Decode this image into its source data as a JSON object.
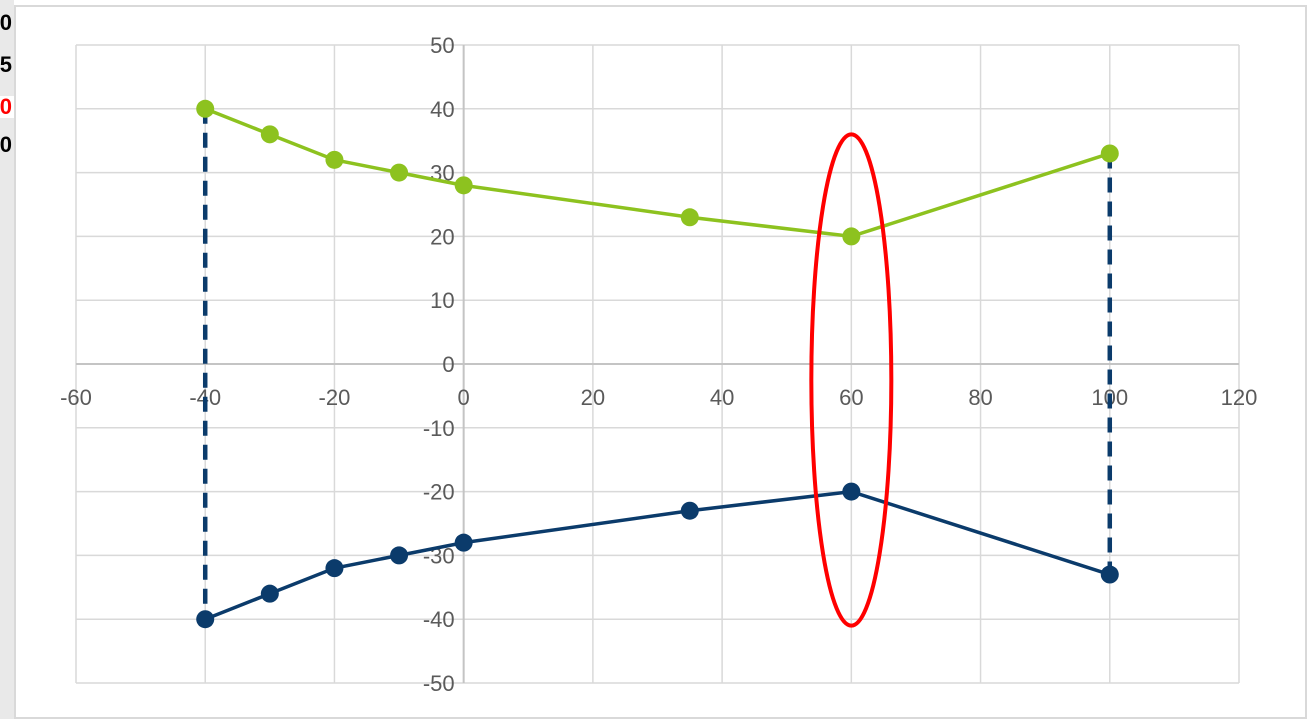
{
  "left_strip": {
    "cells": [
      {
        "text": "0",
        "color": "#000000"
      },
      {
        "text": "5",
        "color": "#000000"
      },
      {
        "text": "0",
        "color": "#ff0000"
      },
      {
        "text": "0",
        "color": "#000000"
      }
    ]
  },
  "chart_data": {
    "type": "scatter",
    "title": "",
    "xlabel": "",
    "ylabel": "",
    "xlim": [
      -60,
      120
    ],
    "ylim": [
      -50,
      50
    ],
    "x_ticks": [
      -60,
      -40,
      -20,
      0,
      20,
      40,
      60,
      80,
      100,
      120
    ],
    "y_ticks": [
      50,
      40,
      30,
      20,
      10,
      0,
      -10,
      -20,
      -30,
      -40,
      -50
    ],
    "grid": true,
    "legend": "none",
    "series": [
      {
        "color": "#8dc21f",
        "x": [
          -40,
          -30,
          -20,
          -10,
          0,
          35,
          60,
          100
        ],
        "y": [
          40,
          36,
          32,
          30,
          28,
          23,
          20,
          33
        ]
      },
      {
        "color": "#0b3b6b",
        "x": [
          -40,
          -30,
          -20,
          -10,
          0,
          35,
          60,
          100
        ],
        "y": [
          -40,
          -36,
          -32,
          -30,
          -28,
          -23,
          -20,
          -33
        ]
      }
    ],
    "dashed_lines": [
      {
        "x": -40,
        "y_from": 40,
        "y_to": -40,
        "color": "#0b3b6b"
      },
      {
        "x": 100,
        "y_from": 33,
        "y_to": -33,
        "color": "#0b3b6b"
      }
    ],
    "highlight_ellipse": {
      "x": 60,
      "y_from": 36,
      "y_to": -41,
      "color": "#ff0000"
    }
  }
}
